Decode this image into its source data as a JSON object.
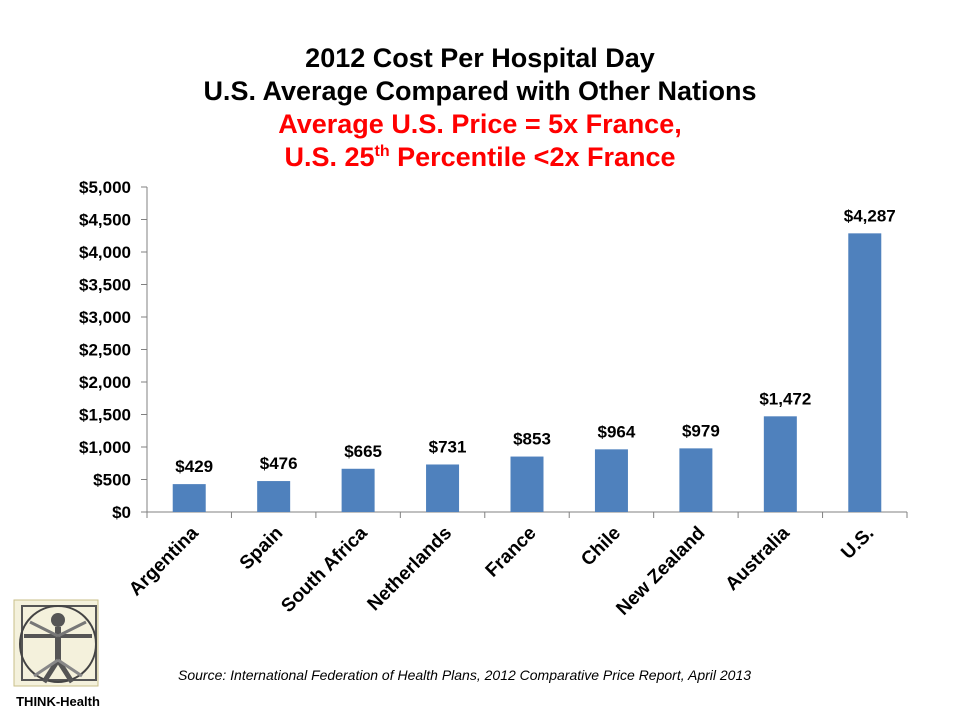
{
  "title": {
    "line1": "2012 Cost Per Hospital Day",
    "line2": "U.S. Average Compared with Other Nations",
    "line3": "Average U.S. Price = 5x France,",
    "line4_pre": "U.S. 25",
    "line4_sup": "th",
    "line4_post": " Percentile <2x France"
  },
  "source": "Source: International Federation of Health Plans, 2012 Comparative Price Report, April 2013",
  "logo": {
    "text": "THINK-Health",
    "icon": "vitruvian-man-icon"
  },
  "colors": {
    "bar": "#4f81bd",
    "subtitle": "#ff0000"
  },
  "chart_data": {
    "type": "bar",
    "categories": [
      "Argentina",
      "Spain",
      "South Africa",
      "Netherlands",
      "France",
      "Chile",
      "New Zealand",
      "Australia",
      "U.S."
    ],
    "values": [
      429,
      476,
      665,
      731,
      853,
      964,
      979,
      1472,
      4287
    ],
    "data_labels": [
      "$429",
      "$476",
      "$665",
      "$731",
      "$853",
      "$964",
      "$979",
      "$1,472",
      "$4,287"
    ],
    "y_ticks": [
      0,
      500,
      1000,
      1500,
      2000,
      2500,
      3000,
      3500,
      4000,
      4500,
      5000
    ],
    "y_tick_labels": [
      "$0",
      "$500",
      "$1,000",
      "$1,500",
      "$2,000",
      "$2,500",
      "$3,000",
      "$3,500",
      "$4,000",
      "$4,500",
      "$5,000"
    ],
    "ylim": [
      0,
      5000
    ],
    "grid": false,
    "legend": "none"
  }
}
